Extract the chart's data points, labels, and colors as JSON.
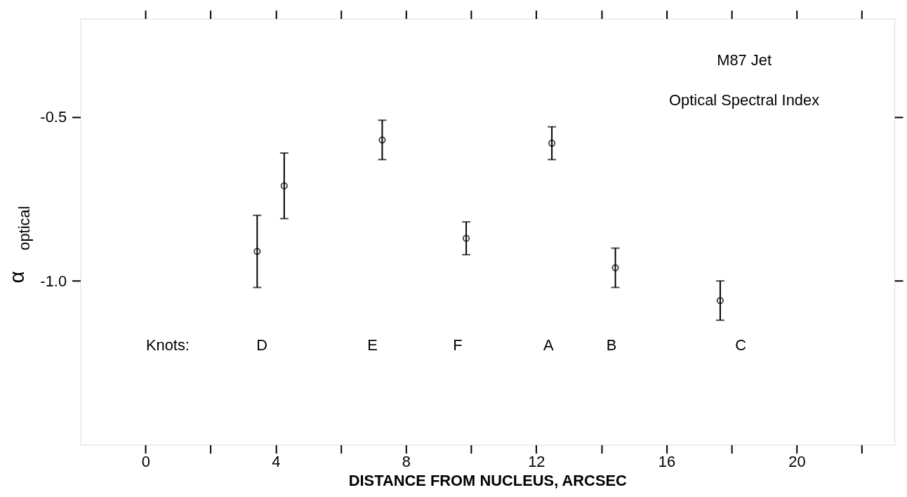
{
  "chart_data": {
    "type": "scatter",
    "title": "M87 Jet",
    "subtitle": "Optical Spectral Index",
    "xlabel": "DISTANCE FROM NUCLEUS, ARCSEC",
    "ylabel": "α$_{optical}$",
    "x": [
      3.43,
      4.26,
      7.27,
      9.85,
      12.48,
      14.43,
      17.65
    ],
    "values": [
      -0.91,
      -0.71,
      -0.57,
      -0.87,
      -0.58,
      -0.96,
      -1.06
    ],
    "errors": [
      0.11,
      0.1,
      0.06,
      0.05,
      0.05,
      0.06,
      0.06
    ],
    "color": "#000000",
    "marker": "circle",
    "grid": false,
    "xlim": [
      -2,
      23
    ],
    "ylim": [
      -1.5,
      -0.2
    ],
    "xticks": [
      0,
      {
        "value": 2,
        "label": null
      },
      4,
      {
        "value": 6,
        "label": null
      },
      8,
      {
        "value": 10,
        "label": null
      },
      12,
      {
        "value": 14,
        "label": null
      },
      16,
      {
        "value": 18,
        "label": null
      },
      20,
      {
        "value": 22,
        "label": null
      }
    ],
    "yticks": [
      {
        "value": -0.5,
        "label": "-0.5"
      },
      {
        "value": -1.0,
        "label": "-1.0"
      }
    ],
    "annotations": [
      "Knots:",
      "D",
      "E",
      "F",
      "A",
      "B",
      "C"
    ]
  }
}
